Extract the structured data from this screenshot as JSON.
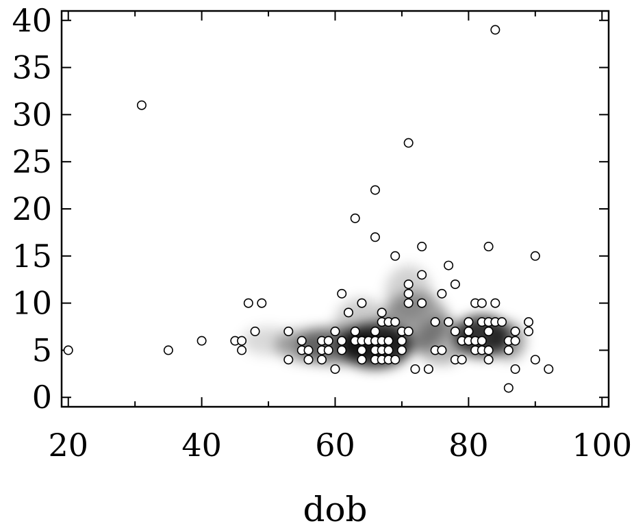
{
  "chart_data": {
    "type": "scatter",
    "title": "",
    "xlabel": "dob",
    "ylabel": "",
    "xlim": [
      19,
      101
    ],
    "ylim": [
      -1,
      41
    ],
    "xticks": [
      20,
      40,
      60,
      80,
      100
    ],
    "xtick_labels": [
      "20",
      "40",
      "60",
      "80",
      "100"
    ],
    "yticks": [
      0,
      5,
      10,
      15,
      20,
      25,
      30,
      35,
      40
    ],
    "ytick_labels": [
      "0",
      "5",
      "10",
      "15",
      "20",
      "25",
      "30",
      "35",
      "40"
    ],
    "density_shading": true,
    "colors": {
      "density": "#000000",
      "marker_fill": "#ffffff",
      "marker_edge": "#000000"
    },
    "points": [
      [
        20,
        5
      ],
      [
        31,
        31
      ],
      [
        35,
        5
      ],
      [
        40,
        6
      ],
      [
        45,
        6
      ],
      [
        46,
        6
      ],
      [
        46,
        5
      ],
      [
        47,
        10
      ],
      [
        48,
        7
      ],
      [
        49,
        10
      ],
      [
        53,
        7
      ],
      [
        53,
        4
      ],
      [
        55,
        6
      ],
      [
        55,
        5
      ],
      [
        56,
        5
      ],
      [
        56,
        4
      ],
      [
        58,
        6
      ],
      [
        58,
        5
      ],
      [
        58,
        4
      ],
      [
        59,
        6
      ],
      [
        59,
        5
      ],
      [
        60,
        7
      ],
      [
        60,
        3
      ],
      [
        61,
        11
      ],
      [
        61,
        6
      ],
      [
        61,
        5
      ],
      [
        62,
        9
      ],
      [
        63,
        19
      ],
      [
        63,
        7
      ],
      [
        63,
        6
      ],
      [
        64,
        10
      ],
      [
        64,
        6
      ],
      [
        64,
        5
      ],
      [
        64,
        4
      ],
      [
        65,
        6
      ],
      [
        66,
        22
      ],
      [
        66,
        17
      ],
      [
        66,
        7
      ],
      [
        66,
        6
      ],
      [
        66,
        5
      ],
      [
        66,
        4
      ],
      [
        67,
        9
      ],
      [
        67,
        8
      ],
      [
        67,
        6
      ],
      [
        67,
        5
      ],
      [
        67,
        4
      ],
      [
        68,
        8
      ],
      [
        68,
        6
      ],
      [
        68,
        5
      ],
      [
        68,
        4
      ],
      [
        69,
        15
      ],
      [
        69,
        8
      ],
      [
        69,
        4
      ],
      [
        70,
        7
      ],
      [
        70,
        6
      ],
      [
        70,
        5
      ],
      [
        71,
        27
      ],
      [
        71,
        12
      ],
      [
        71,
        11
      ],
      [
        71,
        10
      ],
      [
        71,
        7
      ],
      [
        72,
        3
      ],
      [
        73,
        16
      ],
      [
        73,
        13
      ],
      [
        73,
        10
      ],
      [
        74,
        3
      ],
      [
        75,
        8
      ],
      [
        75,
        5
      ],
      [
        76,
        11
      ],
      [
        76,
        5
      ],
      [
        77,
        14
      ],
      [
        77,
        8
      ],
      [
        78,
        12
      ],
      [
        78,
        7
      ],
      [
        78,
        4
      ],
      [
        79,
        6
      ],
      [
        79,
        4
      ],
      [
        80,
        8
      ],
      [
        80,
        7
      ],
      [
        80,
        6
      ],
      [
        81,
        10
      ],
      [
        81,
        6
      ],
      [
        81,
        5
      ],
      [
        82,
        10
      ],
      [
        82,
        8
      ],
      [
        82,
        6
      ],
      [
        82,
        5
      ],
      [
        83,
        16
      ],
      [
        83,
        8
      ],
      [
        83,
        7
      ],
      [
        83,
        5
      ],
      [
        83,
        4
      ],
      [
        84,
        39
      ],
      [
        84,
        10
      ],
      [
        84,
        8
      ],
      [
        85,
        8
      ],
      [
        86,
        6
      ],
      [
        86,
        5
      ],
      [
        86,
        1
      ],
      [
        87,
        7
      ],
      [
        87,
        6
      ],
      [
        87,
        3
      ],
      [
        89,
        8
      ],
      [
        89,
        7
      ],
      [
        90,
        15
      ],
      [
        90,
        4
      ],
      [
        92,
        3
      ]
    ],
    "density_blobs": [
      [
        66,
        5.5,
        5.5,
        2.4,
        0.85
      ],
      [
        82,
        6.5,
        4.2,
        2.2,
        0.8
      ],
      [
        60,
        5.5,
        6,
        2.0,
        0.45
      ],
      [
        72,
        8,
        5,
        3.2,
        0.35
      ],
      [
        56,
        5.5,
        5,
        1.8,
        0.3
      ],
      [
        76,
        6,
        4,
        2.5,
        0.3
      ],
      [
        71,
        11,
        3.5,
        3,
        0.18
      ],
      [
        86,
        6,
        2.5,
        2,
        0.4
      ],
      [
        50,
        6,
        4,
        1.5,
        0.15
      ],
      [
        64,
        8,
        4,
        2.5,
        0.2
      ]
    ]
  }
}
